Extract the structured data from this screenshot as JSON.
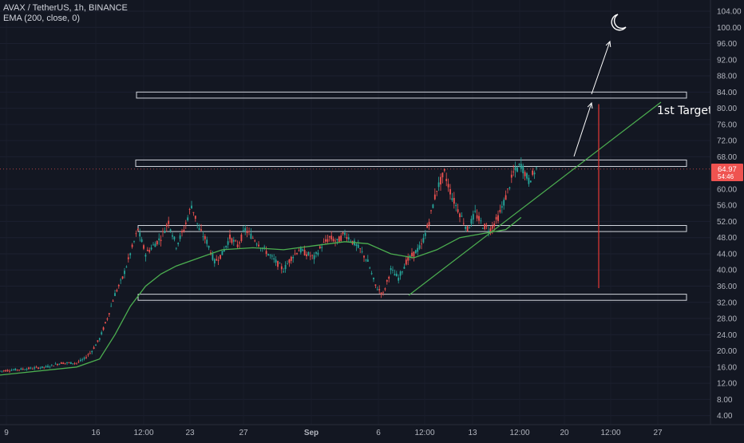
{
  "header": {
    "symbol_line": "AVAX / TetherUS, 1h, BINANCE",
    "indicator_line": "EMA (200, close, 0)"
  },
  "colors": {
    "background": "#131722",
    "up_candle": "#26a69a",
    "down_candle": "#ef5350",
    "ema_line": "#4caf50",
    "zone_border": "#d1d4dc",
    "target_line": "#e53935",
    "price_badge": "#ef5350",
    "trendline": "#4caf50"
  },
  "icons": {
    "moon": "crescent-moon-icon"
  },
  "chart_data": {
    "type": "candlestick",
    "title": "AVAX / TetherUS, 1h, BINANCE",
    "indicator": "EMA (200, close, 0)",
    "x_ticks": [
      "9",
      "16",
      "12:00",
      "23",
      "27",
      "Sep",
      "6",
      "12:00",
      "13",
      "12:00",
      "20",
      "12:00",
      "27"
    ],
    "y_ticks": [
      "104.00",
      "100.00",
      "96.00",
      "92.00",
      "88.00",
      "84.00",
      "80.00",
      "76.00",
      "72.00",
      "68.00",
      "60.00",
      "56.00",
      "52.00",
      "48.00",
      "44.00",
      "40.00",
      "36.00",
      "32.00",
      "28.00",
      "24.00",
      "20.00",
      "16.00",
      "12.00",
      "8.00",
      "4.00"
    ],
    "y_range": [
      2,
      106
    ],
    "last_price": "64.97",
    "countdown": "54:46",
    "price_path": [
      [
        0,
        15
      ],
      [
        6,
        16
      ],
      [
        8,
        17
      ],
      [
        10,
        17
      ],
      [
        11,
        18
      ],
      [
        12,
        20
      ],
      [
        13,
        23
      ],
      [
        14,
        28
      ],
      [
        15,
        34
      ],
      [
        16,
        38
      ],
      [
        17,
        44
      ],
      [
        18,
        50
      ],
      [
        19,
        44
      ],
      [
        20,
        46
      ],
      [
        21,
        48
      ],
      [
        22,
        52
      ],
      [
        23,
        46
      ],
      [
        24,
        50
      ],
      [
        25,
        56
      ],
      [
        26,
        50
      ],
      [
        27,
        47
      ],
      [
        28,
        42
      ],
      [
        29,
        44
      ],
      [
        30,
        48
      ],
      [
        31,
        46
      ],
      [
        32,
        50
      ],
      [
        33,
        48
      ],
      [
        34,
        46
      ],
      [
        35,
        44
      ],
      [
        36,
        42
      ],
      [
        37,
        40
      ],
      [
        38,
        43
      ],
      [
        39,
        45
      ],
      [
        40,
        44
      ],
      [
        41,
        43
      ],
      [
        42,
        46
      ],
      [
        43,
        48
      ],
      [
        44,
        47
      ],
      [
        45,
        49
      ],
      [
        46,
        47
      ],
      [
        47,
        45
      ],
      [
        48,
        42
      ],
      [
        49,
        36
      ],
      [
        50,
        34
      ],
      [
        51,
        40
      ],
      [
        52,
        38
      ],
      [
        53,
        42
      ],
      [
        54,
        44
      ],
      [
        55,
        46
      ],
      [
        56,
        52
      ],
      [
        57,
        60
      ],
      [
        58,
        64
      ],
      [
        59,
        58
      ],
      [
        60,
        54
      ],
      [
        61,
        50
      ],
      [
        62,
        54
      ],
      [
        63,
        51
      ],
      [
        64,
        50
      ],
      [
        65,
        53
      ],
      [
        66,
        58
      ],
      [
        67,
        64
      ],
      [
        68,
        66
      ],
      [
        69,
        62
      ],
      [
        70,
        65
      ]
    ],
    "ema200_path": [
      [
        0,
        14
      ],
      [
        10,
        16
      ],
      [
        13,
        18
      ],
      [
        15,
        24
      ],
      [
        17,
        31
      ],
      [
        19,
        36
      ],
      [
        21,
        39
      ],
      [
        23,
        41
      ],
      [
        26,
        43
      ],
      [
        29,
        45
      ],
      [
        33,
        45.5
      ],
      [
        37,
        45
      ],
      [
        41,
        46
      ],
      [
        45,
        47
      ],
      [
        48,
        46.5
      ],
      [
        51,
        44
      ],
      [
        54,
        43
      ],
      [
        57,
        45
      ],
      [
        60,
        48
      ],
      [
        63,
        49
      ],
      [
        66,
        50
      ],
      [
        68,
        53
      ]
    ],
    "zones": [
      {
        "label": "zone-top",
        "low": 82.5,
        "high": 84.0
      },
      {
        "label": "zone-upper",
        "low": 65.6,
        "high": 67.2
      },
      {
        "label": "zone-mid",
        "low": 49.5,
        "high": 51.0
      },
      {
        "label": "zone-low",
        "low": 32.5,
        "high": 34.0
      }
    ],
    "target_line": {
      "from": 35.5,
      "to": 81.0
    },
    "annotations": {
      "target_label": "1st Target"
    }
  }
}
